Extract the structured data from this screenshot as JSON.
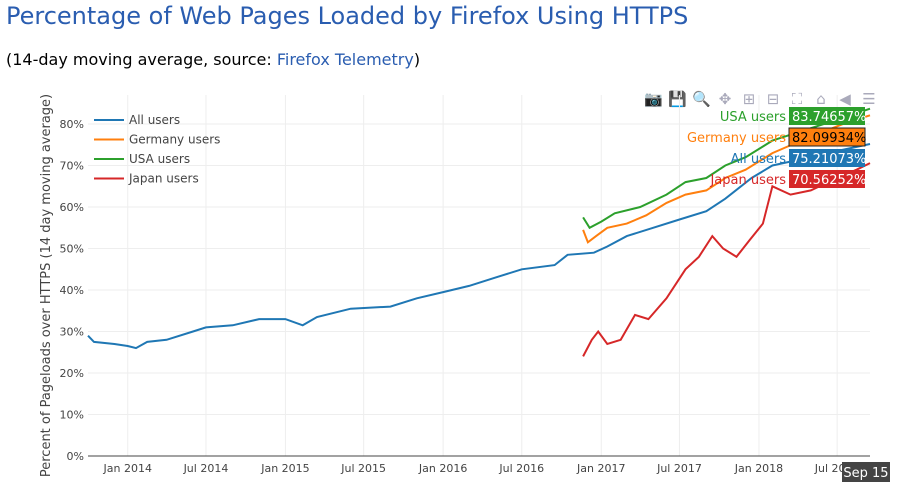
{
  "title": "Percentage of Web Pages Loaded by Firefox Using HTTPS",
  "subtitle_prefix": "(14-day moving average, source: ",
  "subtitle_link": "Firefox Telemetry",
  "subtitle_suffix": ")",
  "modebar": [
    {
      "icon": "camera-icon",
      "g": "📷"
    },
    {
      "icon": "save-icon",
      "g": "💾"
    },
    {
      "icon": "zoom-icon",
      "g": "🔍"
    },
    {
      "icon": "pan-icon",
      "g": "✥"
    },
    {
      "icon": "zoom-in-icon",
      "g": "⊞"
    },
    {
      "icon": "zoom-out-icon",
      "g": "⊟"
    },
    {
      "icon": "autoscale-icon",
      "g": "⛶"
    },
    {
      "icon": "home-icon",
      "g": "⌂"
    },
    {
      "icon": "spike-icon",
      "g": "◀"
    },
    {
      "icon": "compare-icon",
      "g": "☰"
    }
  ],
  "hover_x": "Sep 15",
  "chart_data": {
    "type": "line",
    "ylabel": "Percent of Pageloads over HTTPS (14 day moving average)",
    "ylim": [
      0,
      87
    ],
    "yticks": [
      "0%",
      "10%",
      "20%",
      "30%",
      "40%",
      "50%",
      "60%",
      "70%",
      "80%"
    ],
    "xticks": [
      "Jan 2014",
      "Jul 2014",
      "Jan 2015",
      "Jul 2015",
      "Jan 2016",
      "Jul 2016",
      "Jan 2017",
      "Jul 2017",
      "Jan 2018",
      "Jul 2018"
    ],
    "xlim": [
      "2013-10-01",
      "2018-09-15"
    ],
    "grid": true,
    "legend": "top-left",
    "series": [
      {
        "name": "All users",
        "color": "#1f77b4",
        "hover": "75.21073%",
        "points": [
          [
            "2013-10-01",
            29
          ],
          [
            "2013-10-15",
            27.5
          ],
          [
            "2013-12-01",
            27
          ],
          [
            "2014-01-01",
            26.5
          ],
          [
            "2014-01-20",
            26
          ],
          [
            "2014-02-15",
            27.5
          ],
          [
            "2014-04-01",
            28
          ],
          [
            "2014-06-01",
            30
          ],
          [
            "2014-07-01",
            31
          ],
          [
            "2014-09-01",
            31.5
          ],
          [
            "2014-11-01",
            33
          ],
          [
            "2015-01-01",
            33
          ],
          [
            "2015-02-10",
            31.5
          ],
          [
            "2015-03-15",
            33.5
          ],
          [
            "2015-06-01",
            35.5
          ],
          [
            "2015-09-01",
            36
          ],
          [
            "2015-11-01",
            38
          ],
          [
            "2016-01-01",
            39.5
          ],
          [
            "2016-03-01",
            41
          ],
          [
            "2016-05-01",
            43
          ],
          [
            "2016-07-01",
            45
          ],
          [
            "2016-09-15",
            46
          ],
          [
            "2016-10-15",
            48.5
          ],
          [
            "2016-12-15",
            49
          ],
          [
            "2017-01-15",
            50.5
          ],
          [
            "2017-03-01",
            53
          ],
          [
            "2017-05-01",
            55
          ],
          [
            "2017-07-01",
            57
          ],
          [
            "2017-09-01",
            59
          ],
          [
            "2017-10-15",
            62
          ],
          [
            "2017-12-15",
            67
          ],
          [
            "2018-02-01",
            70
          ],
          [
            "2018-05-01",
            72
          ],
          [
            "2018-07-01",
            73.5
          ],
          [
            "2018-09-15",
            75.2
          ]
        ]
      },
      {
        "name": "Germany users",
        "color": "#ff7f0e",
        "hover": "82.09934%",
        "points": [
          [
            "2016-11-20",
            54.5
          ],
          [
            "2016-12-01",
            51.5
          ],
          [
            "2016-12-20",
            53
          ],
          [
            "2017-01-15",
            55
          ],
          [
            "2017-03-01",
            56
          ],
          [
            "2017-04-15",
            58
          ],
          [
            "2017-06-01",
            61
          ],
          [
            "2017-07-15",
            63
          ],
          [
            "2017-09-01",
            64
          ],
          [
            "2017-10-15",
            67
          ],
          [
            "2017-12-01",
            69
          ],
          [
            "2018-02-01",
            73
          ],
          [
            "2018-05-01",
            77
          ],
          [
            "2018-07-15",
            80
          ],
          [
            "2018-09-15",
            82.1
          ]
        ]
      },
      {
        "name": "USA users",
        "color": "#2ca02c",
        "hover": "83.74657%",
        "points": [
          [
            "2016-11-20",
            57.5
          ],
          [
            "2016-12-05",
            55
          ],
          [
            "2017-01-01",
            56.5
          ],
          [
            "2017-02-01",
            58.5
          ],
          [
            "2017-04-01",
            60
          ],
          [
            "2017-06-01",
            63
          ],
          [
            "2017-07-15",
            66
          ],
          [
            "2017-09-01",
            67
          ],
          [
            "2017-10-15",
            70
          ],
          [
            "2017-12-01",
            72
          ],
          [
            "2018-02-01",
            76
          ],
          [
            "2018-05-01",
            79
          ],
          [
            "2018-07-15",
            81.5
          ],
          [
            "2018-09-15",
            83.7
          ]
        ]
      },
      {
        "name": "Japan users",
        "color": "#d62728",
        "hover": "70.56252%",
        "points": [
          [
            "2016-11-20",
            24
          ],
          [
            "2016-12-10",
            28
          ],
          [
            "2016-12-25",
            30
          ],
          [
            "2017-01-15",
            27
          ],
          [
            "2017-02-15",
            28
          ],
          [
            "2017-03-20",
            34
          ],
          [
            "2017-04-20",
            33
          ],
          [
            "2017-06-01",
            38
          ],
          [
            "2017-07-15",
            45
          ],
          [
            "2017-08-15",
            48
          ],
          [
            "2017-09-15",
            53
          ],
          [
            "2017-10-10",
            50
          ],
          [
            "2017-11-10",
            48
          ],
          [
            "2017-12-10",
            52
          ],
          [
            "2018-01-10",
            56
          ],
          [
            "2018-02-01",
            65
          ],
          [
            "2018-03-15",
            63
          ],
          [
            "2018-05-01",
            64
          ],
          [
            "2018-07-01",
            67
          ],
          [
            "2018-08-15",
            69
          ],
          [
            "2018-09-15",
            70.6
          ]
        ]
      }
    ]
  }
}
